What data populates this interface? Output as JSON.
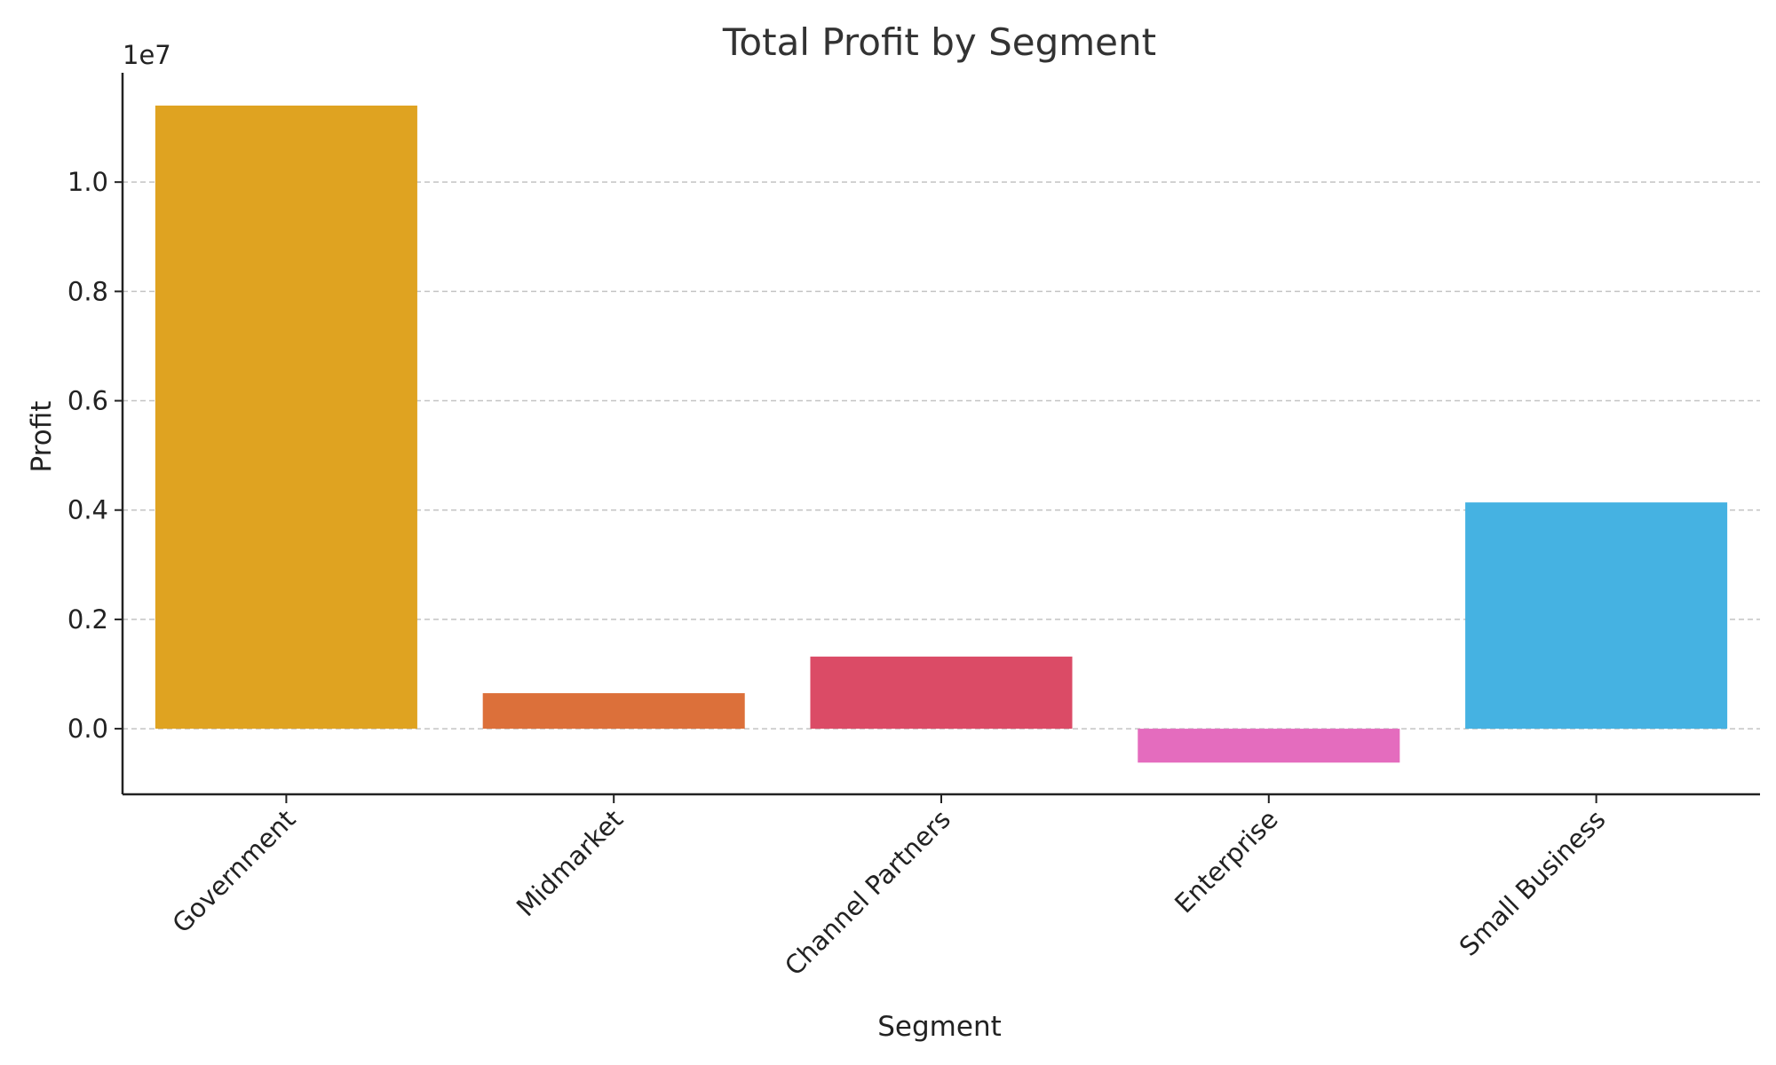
{
  "chart_data": {
    "type": "bar",
    "title": "Total Profit by Segment",
    "xlabel": "Segment",
    "ylabel": "Profit",
    "y_offset_label": "1e7",
    "categories": [
      "Government",
      "Midmarket",
      "Channel Partners",
      "Enterprise",
      "Small Business"
    ],
    "values": [
      11400000,
      650000,
      1320000,
      -620000,
      4140000
    ],
    "colors": [
      "#DFA321",
      "#DC703A",
      "#DB4B66",
      "#E46CBE",
      "#45B2E2"
    ],
    "ylim": [
      -1200000,
      12000000
    ],
    "yticks": [
      0,
      2000000,
      4000000,
      6000000,
      8000000,
      10000000
    ],
    "ytick_labels": [
      "0.0",
      "0.2",
      "0.4",
      "0.6",
      "0.8",
      "1.0"
    ],
    "grid": true
  }
}
